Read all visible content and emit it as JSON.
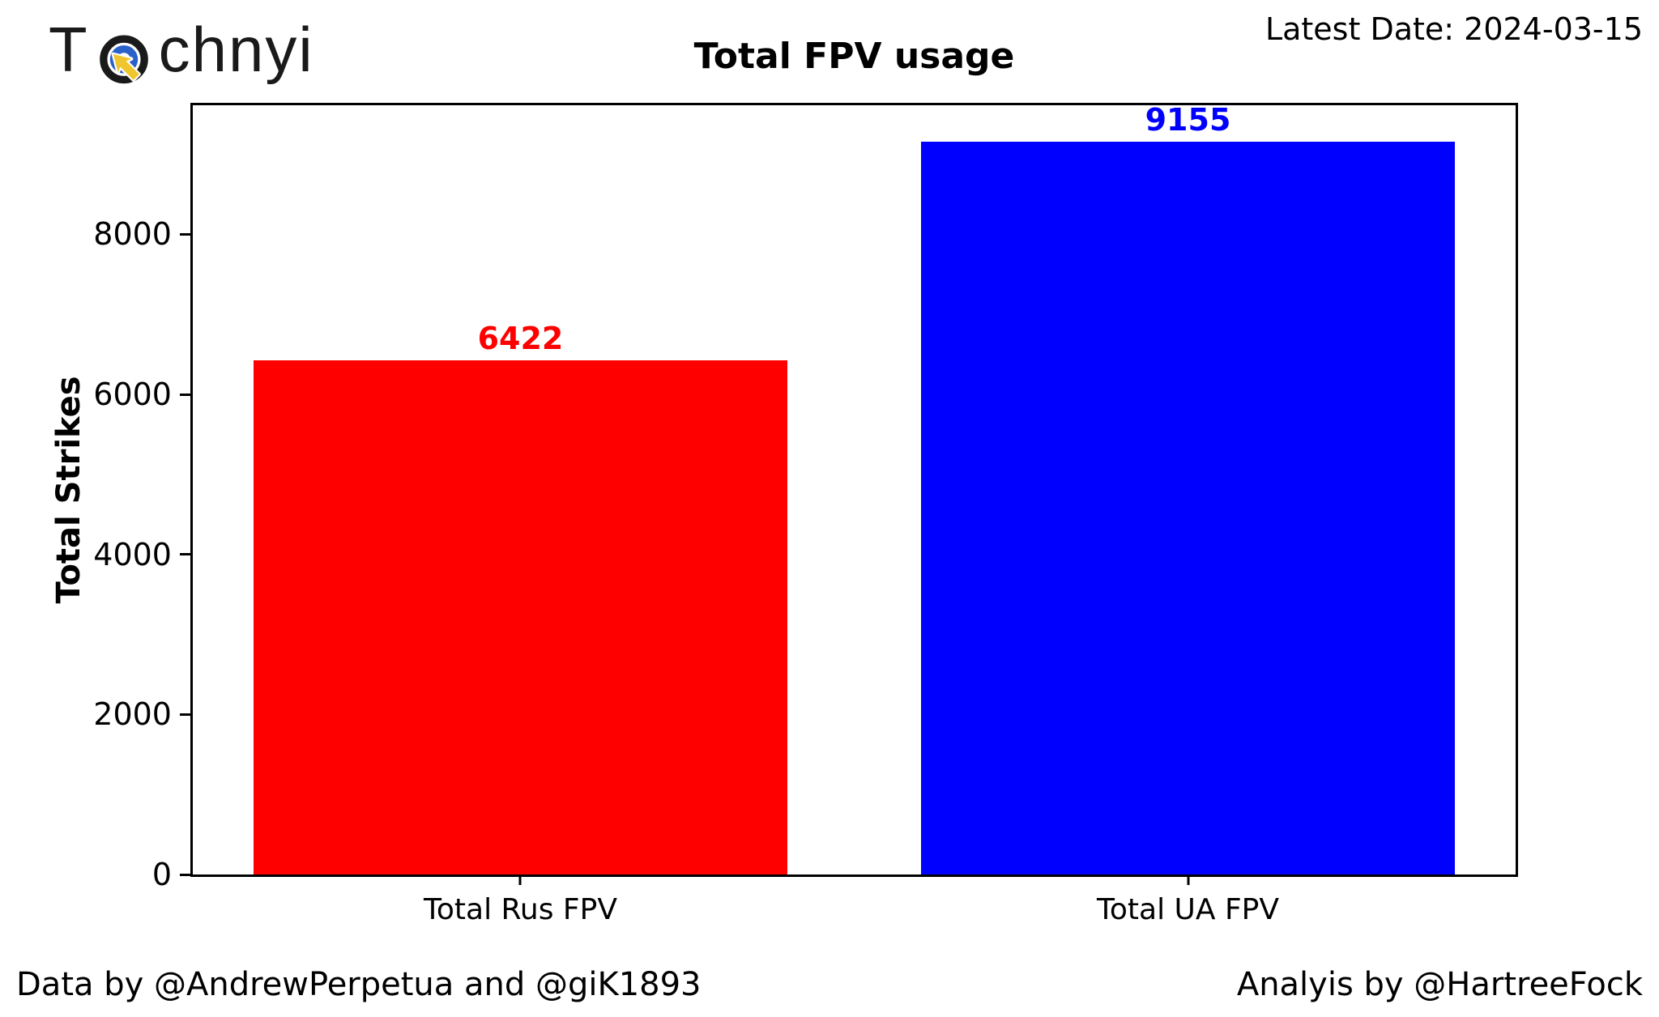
{
  "logo": {
    "prefix": "T",
    "suffix": "chnyi",
    "icon": "target-cursor-icon",
    "icon_colors": {
      "outer_ring": "#1a1a1a",
      "inner_ring": "#2b62c9",
      "cursor": "#f0c62e"
    }
  },
  "header": {
    "latest_date": "Latest Date: 2024-03-15"
  },
  "footer": {
    "left": "Data by @AndrewPerpetua and @giK1893",
    "right": "Analyis by @HartreeFock"
  },
  "chart_data": {
    "type": "bar",
    "title": "Total FPV usage",
    "xlabel": "",
    "ylabel": "Total Strikes",
    "categories": [
      "Total Rus FPV",
      "Total UA FPV"
    ],
    "values": [
      6422,
      9155
    ],
    "bar_colors": [
      "#ff0000",
      "#0000ff"
    ],
    "value_label_colors": [
      "#ff0000",
      "#0000ff"
    ],
    "ylim": [
      0,
      9613
    ],
    "yticks": [
      0,
      2000,
      4000,
      6000,
      8000
    ],
    "grid": false,
    "legend_position": "none",
    "background": "#ffffff",
    "layout": {
      "bar_centers_frac": [
        0.2477,
        0.7523
      ],
      "bar_width_frac": 0.404
    }
  }
}
